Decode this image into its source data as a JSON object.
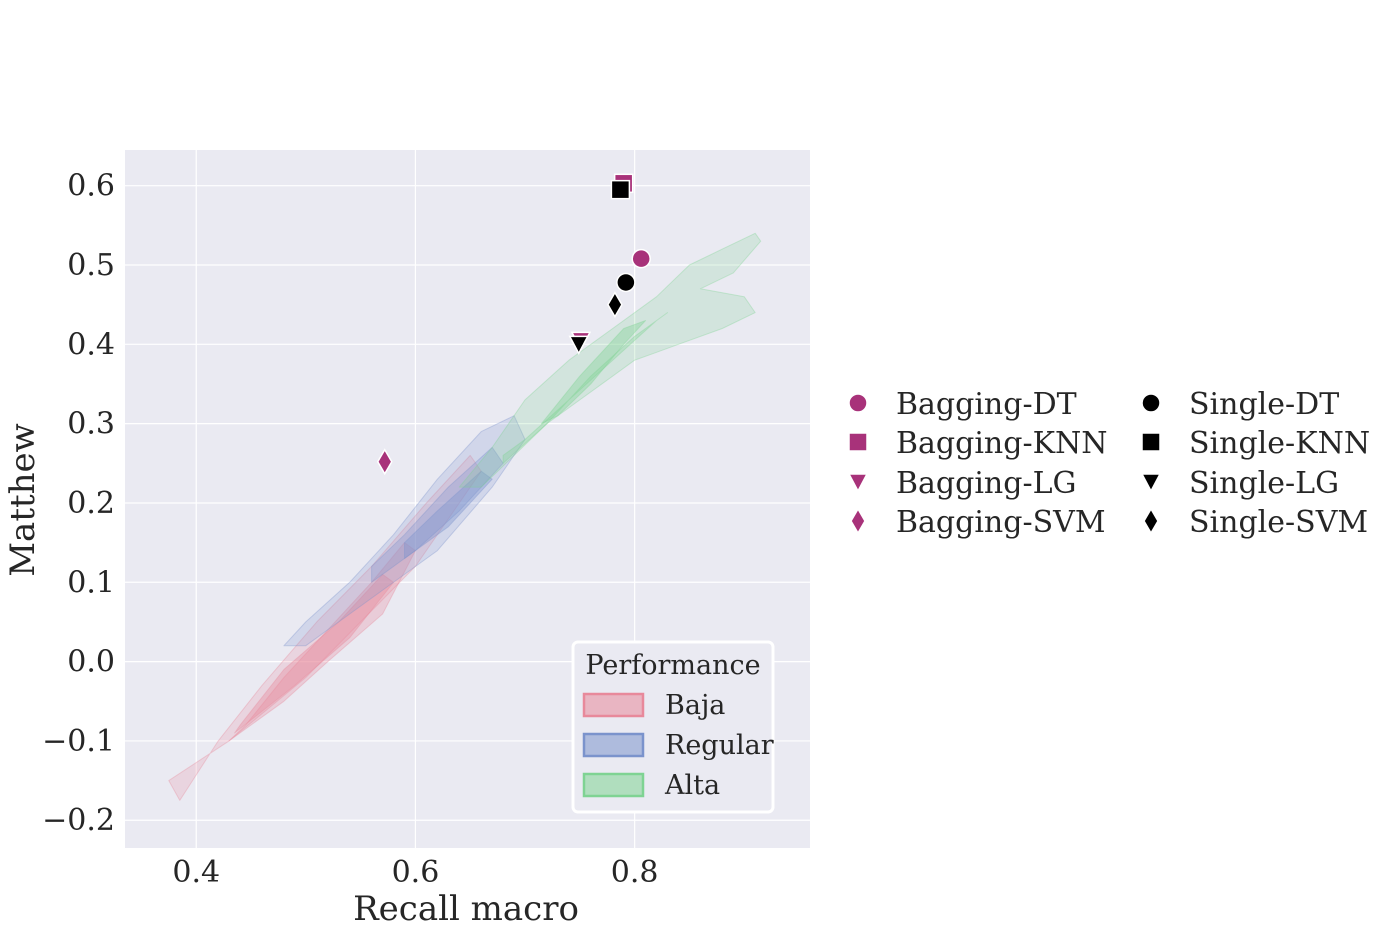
{
  "chart_data": {
    "type": "scatter",
    "xlabel": "Recall macro",
    "ylabel": "Matthew",
    "xlim": [
      0.335,
      0.96
    ],
    "ylim": [
      -0.235,
      0.645
    ],
    "xticks": [
      0.4,
      0.6,
      0.8
    ],
    "xtick_labels": [
      "0.4",
      "0.6",
      "0.8"
    ],
    "yticks": [
      -0.2,
      -0.1,
      0.0,
      0.1,
      0.2,
      0.3,
      0.4,
      0.5,
      0.6
    ],
    "ytick_labels": [
      "−0.2",
      "−0.1",
      "0.0",
      "0.1",
      "0.2",
      "0.3",
      "0.4",
      "0.5",
      "0.6"
    ],
    "grid": true,
    "background": "#eaeaf2",
    "series": [
      {
        "name": "Bagging-DT",
        "marker": "circle",
        "color": "#a8327a",
        "points": [
          [
            0.806,
            0.508
          ]
        ]
      },
      {
        "name": "Bagging-KNN",
        "marker": "square",
        "color": "#a8327a",
        "points": [
          [
            0.79,
            0.603
          ]
        ]
      },
      {
        "name": "Bagging-LG",
        "marker": "triangle-down",
        "color": "#a8327a",
        "points": [
          [
            0.751,
            0.405
          ]
        ]
      },
      {
        "name": "Bagging-SVM",
        "marker": "diamond",
        "color": "#a8327a",
        "points": [
          [
            0.572,
            0.252
          ]
        ]
      },
      {
        "name": "Single-DT",
        "marker": "circle",
        "color": "#000000",
        "points": [
          [
            0.792,
            0.478
          ]
        ]
      },
      {
        "name": "Single-KNN",
        "marker": "square",
        "color": "#000000",
        "points": [
          [
            0.787,
            0.595
          ]
        ]
      },
      {
        "name": "Single-LG",
        "marker": "triangle-down",
        "color": "#000000",
        "points": [
          [
            0.749,
            0.4
          ]
        ]
      },
      {
        "name": "Single-SVM",
        "marker": "diamond",
        "color": "#000000",
        "points": [
          [
            0.782,
            0.45
          ]
        ]
      }
    ],
    "density_regions": [
      {
        "name": "Baja",
        "color": "#e8899b",
        "levels": [
          [
            [
              0.375,
              -0.15
            ],
            [
              0.43,
              -0.1
            ],
            [
              0.5,
              -0.02
            ],
            [
              0.55,
              0.05
            ],
            [
              0.6,
              0.12
            ],
            [
              0.64,
              0.2
            ],
            [
              0.66,
              0.24
            ],
            [
              0.65,
              0.26
            ],
            [
              0.61,
              0.2
            ],
            [
              0.56,
              0.12
            ],
            [
              0.51,
              0.05
            ],
            [
              0.46,
              -0.03
            ],
            [
              0.42,
              -0.1
            ],
            [
              0.385,
              -0.175
            ]
          ],
          [
            [
              0.43,
              -0.1
            ],
            [
              0.48,
              -0.05
            ],
            [
              0.52,
              0.0
            ],
            [
              0.57,
              0.06
            ],
            [
              0.6,
              0.14
            ],
            [
              0.59,
              0.15
            ],
            [
              0.56,
              0.1
            ],
            [
              0.52,
              0.04
            ],
            [
              0.48,
              -0.02
            ],
            [
              0.445,
              -0.08
            ]
          ],
          [
            [
              0.435,
              -0.09
            ],
            [
              0.49,
              -0.03
            ],
            [
              0.54,
              0.03
            ],
            [
              0.58,
              0.1
            ],
            [
              0.57,
              0.11
            ],
            [
              0.53,
              0.05
            ],
            [
              0.48,
              -0.01
            ],
            [
              0.44,
              -0.08
            ]
          ]
        ]
      },
      {
        "name": "Regular",
        "color": "#7b93cc",
        "levels": [
          [
            [
              0.5,
              0.02
            ],
            [
              0.56,
              0.08
            ],
            [
              0.62,
              0.14
            ],
            [
              0.67,
              0.22
            ],
            [
              0.7,
              0.28
            ],
            [
              0.69,
              0.31
            ],
            [
              0.66,
              0.29
            ],
            [
              0.62,
              0.23
            ],
            [
              0.58,
              0.16
            ],
            [
              0.54,
              0.1
            ],
            [
              0.5,
              0.05
            ],
            [
              0.48,
              0.02
            ]
          ],
          [
            [
              0.56,
              0.1
            ],
            [
              0.6,
              0.14
            ],
            [
              0.64,
              0.19
            ],
            [
              0.68,
              0.25
            ],
            [
              0.67,
              0.27
            ],
            [
              0.63,
              0.22
            ],
            [
              0.59,
              0.16
            ],
            [
              0.56,
              0.12
            ]
          ],
          [
            [
              0.59,
              0.13
            ],
            [
              0.63,
              0.17
            ],
            [
              0.67,
              0.23
            ],
            [
              0.66,
              0.24
            ],
            [
              0.62,
              0.19
            ],
            [
              0.59,
              0.15
            ]
          ]
        ]
      },
      {
        "name": "Alta",
        "color": "#7fd393",
        "levels": [
          [
            [
              0.64,
              0.22
            ],
            [
              0.67,
              0.27
            ],
            [
              0.7,
              0.33
            ],
            [
              0.74,
              0.38
            ],
            [
              0.78,
              0.42
            ],
            [
              0.82,
              0.46
            ],
            [
              0.85,
              0.5
            ],
            [
              0.88,
              0.52
            ],
            [
              0.91,
              0.54
            ],
            [
              0.915,
              0.53
            ],
            [
              0.89,
              0.49
            ],
            [
              0.86,
              0.47
            ],
            [
              0.9,
              0.46
            ],
            [
              0.91,
              0.44
            ],
            [
              0.88,
              0.42
            ],
            [
              0.84,
              0.4
            ],
            [
              0.82,
              0.39
            ],
            [
              0.8,
              0.38
            ],
            [
              0.78,
              0.36
            ],
            [
              0.75,
              0.33
            ],
            [
              0.72,
              0.3
            ],
            [
              0.69,
              0.26
            ],
            [
              0.66,
              0.22
            ]
          ],
          [
            [
              0.68,
              0.25
            ],
            [
              0.72,
              0.3
            ],
            [
              0.76,
              0.36
            ],
            [
              0.8,
              0.41
            ],
            [
              0.83,
              0.44
            ],
            [
              0.82,
              0.43
            ],
            [
              0.78,
              0.38
            ],
            [
              0.74,
              0.33
            ],
            [
              0.7,
              0.28
            ],
            [
              0.68,
              0.26
            ]
          ],
          [
            [
              0.715,
              0.3
            ],
            [
              0.75,
              0.36
            ],
            [
              0.79,
              0.42
            ],
            [
              0.81,
              0.43
            ],
            [
              0.79,
              0.4
            ],
            [
              0.76,
              0.35
            ],
            [
              0.73,
              0.31
            ]
          ]
        ]
      }
    ],
    "marker_legend": {
      "columns": [
        [
          "Bagging-DT",
          "Bagging-KNN",
          "Bagging-LG",
          "Bagging-SVM"
        ],
        [
          "Single-DT",
          "Single-KNN",
          "Single-LG",
          "Single-SVM"
        ]
      ],
      "placement": "outside-right"
    },
    "region_legend": {
      "title": "Performance",
      "entries": [
        "Baja",
        "Regular",
        "Alta"
      ],
      "placement": "lower-right"
    }
  }
}
